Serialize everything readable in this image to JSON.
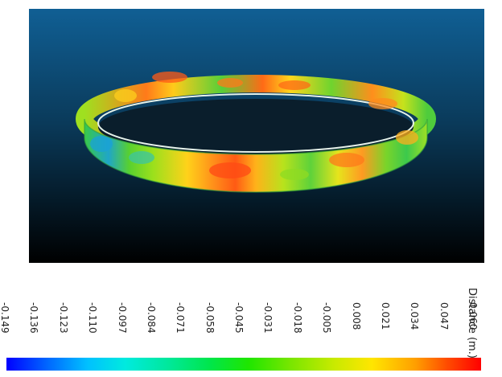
{
  "scene": {
    "object": "point cloud ring colored by distance",
    "background_top": "#0f5e93",
    "background_bottom": "#000000"
  },
  "legend": {
    "title": "Distance (m.)",
    "ticks": [
      "-0.149",
      "-0.136",
      "-0.123",
      "-0.110",
      "-0.097",
      "-0.084",
      "-0.071",
      "-0.058",
      "-0.045",
      "-0.031",
      "-0.018",
      "-0.005",
      "0.008",
      "0.021",
      "0.034",
      "0.047",
      "0.060"
    ],
    "min": -0.149,
    "max": 0.06,
    "colormap": [
      "#0000ff",
      "#00c0ff",
      "#00e89c",
      "#1fe600",
      "#c8ea00",
      "#ffe600",
      "#ff4a00",
      "#ff0000"
    ]
  }
}
